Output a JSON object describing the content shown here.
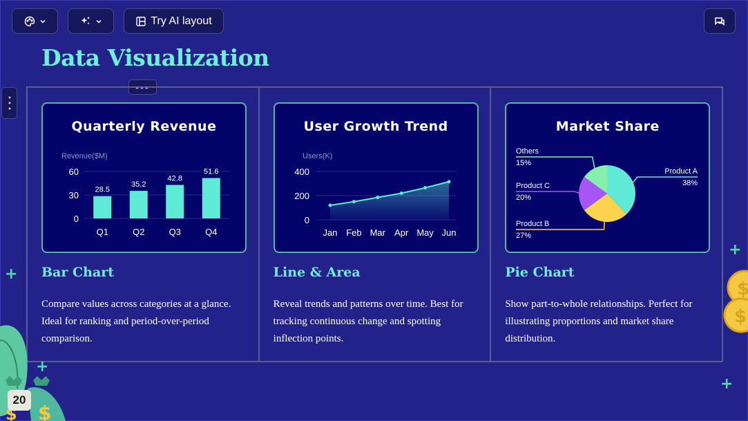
{
  "toolbar": {
    "layout_label": "Try AI layout"
  },
  "slide": {
    "title": "Data Visualization",
    "page_number": "20"
  },
  "columns": [
    {
      "card_title": "Quarterly Revenue",
      "heading": "Bar Chart",
      "description": "Compare values across categories at a glance. Ideal for ranking and period-over-period comparison."
    },
    {
      "card_title": "User Growth Trend",
      "heading": "Line & Area",
      "description": "Reveal trends and patterns over time. Best for tracking continuous change and spotting inflection points."
    },
    {
      "card_title": "Market Share",
      "heading": "Pie Chart",
      "description": "Show part-to-whole relationships. Perfect for illustrating proportions and market share distribution."
    }
  ],
  "colors": {
    "accent": "#6ef0d8",
    "background": "#23228a",
    "card": "#03036a"
  },
  "chart_data": [
    {
      "type": "bar",
      "title": "Quarterly Revenue",
      "ylabel": "Revenue($M)",
      "categories": [
        "Q1",
        "Q2",
        "Q3",
        "Q4"
      ],
      "values": [
        28.5,
        35.2,
        42.8,
        51.6
      ],
      "value_labels": [
        "28.5",
        "35.2",
        "42.8",
        "51.6"
      ],
      "yticks": [
        "0",
        "30",
        "60"
      ],
      "ylim": [
        0,
        60
      ],
      "color": "#5eead4"
    },
    {
      "type": "area",
      "title": "User Growth Trend",
      "ylabel": "Users(K)",
      "categories": [
        "Jan",
        "Feb",
        "Mar",
        "Apr",
        "May",
        "Jun"
      ],
      "values": [
        120,
        150,
        185,
        220,
        265,
        315
      ],
      "yticks": [
        "0",
        "200",
        "400"
      ],
      "ylim": [
        0,
        400
      ],
      "color": "#5eead4"
    },
    {
      "type": "pie",
      "title": "Market Share",
      "slices": [
        {
          "name": "Product A",
          "value": 38,
          "label": "38%",
          "color": "#5eead4"
        },
        {
          "name": "Product B",
          "value": 27,
          "label": "27%",
          "color": "#fcd34d"
        },
        {
          "name": "Product C",
          "value": 20,
          "label": "20%",
          "color": "#a855f7"
        },
        {
          "name": "Others",
          "value": 15,
          "label": "15%",
          "color": "#86efac"
        }
      ]
    }
  ]
}
